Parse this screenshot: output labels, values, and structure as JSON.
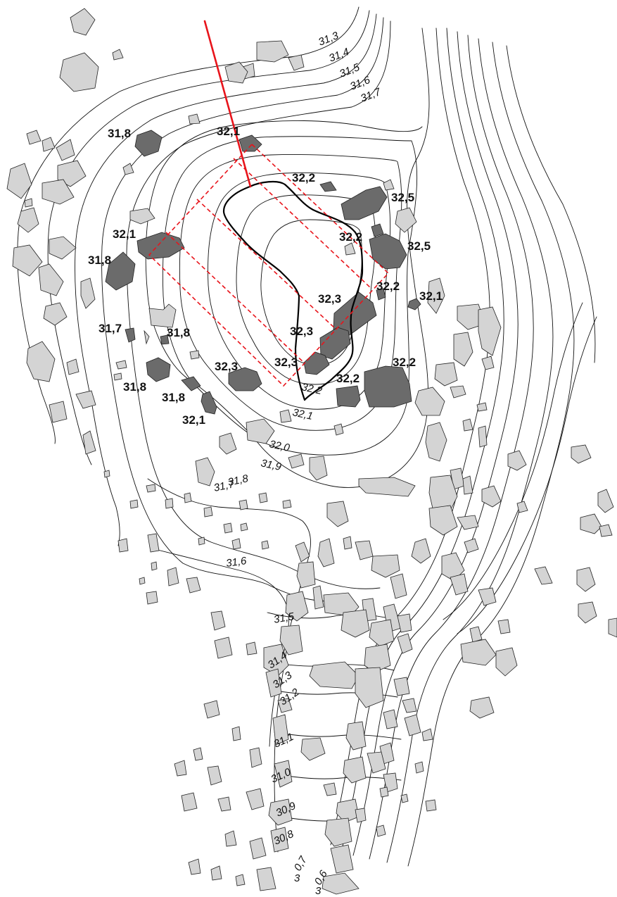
{
  "colors": {
    "stone_light": "#d4d4d4",
    "stone_dark": "#6b6b6b",
    "outline_red": "#e8141b",
    "contour": "#111111"
  },
  "contour_labels": [
    {
      "id": "c313",
      "text": "31,3"
    },
    {
      "id": "c314",
      "text": "31,4"
    },
    {
      "id": "c315",
      "text": "31,5"
    },
    {
      "id": "c316",
      "text": "31,6"
    },
    {
      "id": "c317",
      "text": "31,7"
    },
    {
      "id": "c322",
      "text": "32,2"
    },
    {
      "id": "c321",
      "text": "32,1"
    },
    {
      "id": "c320",
      "text": "32,0"
    },
    {
      "id": "c319",
      "text": "31,9"
    },
    {
      "id": "c318b",
      "text": "31,8"
    },
    {
      "id": "c317b",
      "text": "31,7"
    },
    {
      "id": "c316b",
      "text": "31,6"
    },
    {
      "id": "c315b",
      "text": "31,5"
    },
    {
      "id": "c314b",
      "text": "31,4"
    },
    {
      "id": "c313b",
      "text": "31,3"
    },
    {
      "id": "c312b",
      "text": "31,2"
    },
    {
      "id": "c311",
      "text": "31,1"
    },
    {
      "id": "c310",
      "text": "31,0"
    },
    {
      "id": "c309",
      "text": "30,9"
    },
    {
      "id": "c308",
      "text": "30,8"
    },
    {
      "id": "c307a",
      "text": "3"
    },
    {
      "id": "c307b",
      "text": "0,7"
    },
    {
      "id": "c306a",
      "text": "3"
    },
    {
      "id": "c306b",
      "text": "0,6"
    }
  ],
  "spot_heights": [
    {
      "id": "h1",
      "text": "31,8"
    },
    {
      "id": "h2",
      "text": "32,1"
    },
    {
      "id": "h3",
      "text": "32,2"
    },
    {
      "id": "h4",
      "text": "32,5"
    },
    {
      "id": "h5",
      "text": "32,1"
    },
    {
      "id": "h6",
      "text": "32,2"
    },
    {
      "id": "h7",
      "text": "32,5"
    },
    {
      "id": "h8",
      "text": "31,8"
    },
    {
      "id": "h9",
      "text": "32,2"
    },
    {
      "id": "h10",
      "text": "32,1"
    },
    {
      "id": "h11",
      "text": "32,3"
    },
    {
      "id": "h12",
      "text": "31,7"
    },
    {
      "id": "h13",
      "text": "31,8"
    },
    {
      "id": "h14",
      "text": "32,3"
    },
    {
      "id": "h15",
      "text": "32,3"
    },
    {
      "id": "h16",
      "text": "32,3"
    },
    {
      "id": "h17",
      "text": "32,2"
    },
    {
      "id": "h18",
      "text": "32,2"
    },
    {
      "id": "h19",
      "text": "31,8"
    },
    {
      "id": "h20",
      "text": "31,8"
    },
    {
      "id": "h21",
      "text": "32,1"
    }
  ]
}
